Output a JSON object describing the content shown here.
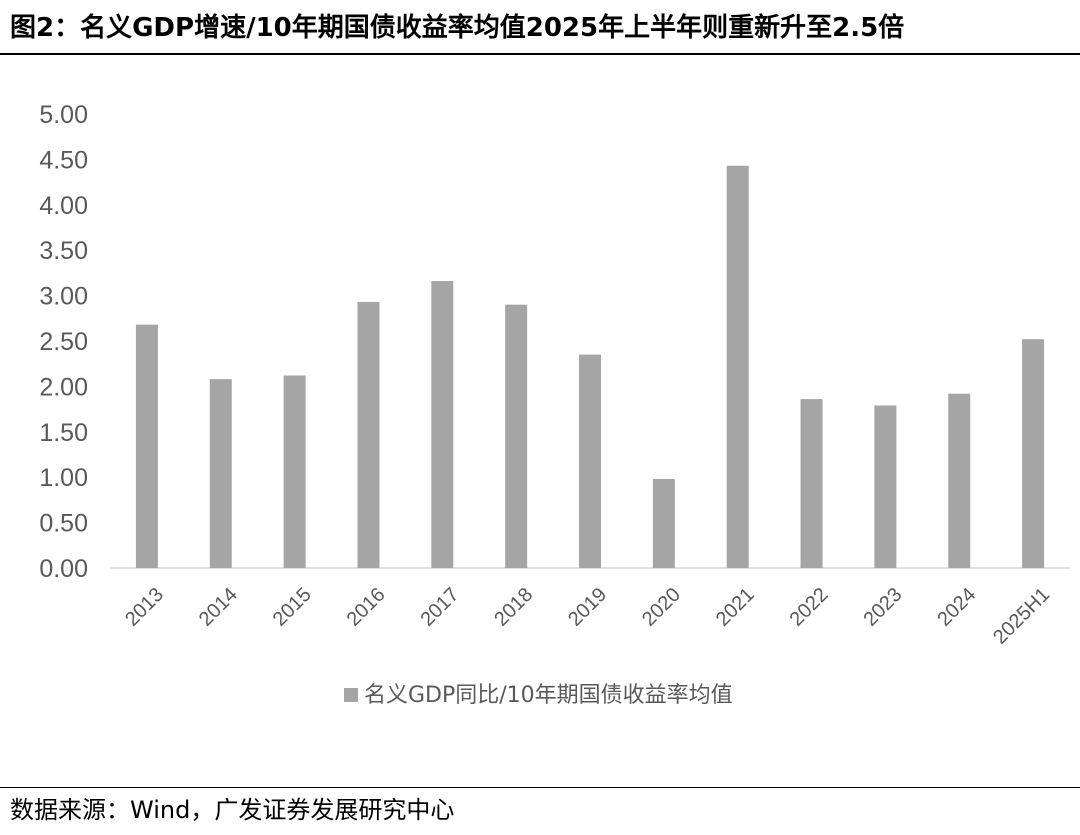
{
  "figure": {
    "title": "图2：名义GDP增速/10年期国债收益率均值2025年上半年则重新升至2.5倍",
    "source": "数据来源：Wind，广发证券发展研究中心"
  },
  "colors": {
    "bar": "#a5a5a5",
    "axis_text": "#595959",
    "axis_line": "#d9d9d9"
  },
  "chart_data": {
    "type": "bar",
    "title": "",
    "xlabel": "",
    "ylabel": "",
    "categories": [
      "2013",
      "2014",
      "2015",
      "2016",
      "2017",
      "2018",
      "2019",
      "2020",
      "2021",
      "2022",
      "2023",
      "2024",
      "2025H1"
    ],
    "series": [
      {
        "name": "名义GDP同比/10年期国债收益率均值",
        "values": [
          2.68,
          2.08,
          2.12,
          2.93,
          3.16,
          2.9,
          2.35,
          0.98,
          4.43,
          1.86,
          1.79,
          1.92,
          2.52
        ]
      }
    ],
    "ylim": [
      0,
      5
    ],
    "yticks": [
      "0.00",
      "0.50",
      "1.00",
      "1.50",
      "2.00",
      "2.50",
      "3.00",
      "3.50",
      "4.00",
      "4.50",
      "5.00"
    ],
    "grid": false,
    "legend": "bottom-center"
  }
}
